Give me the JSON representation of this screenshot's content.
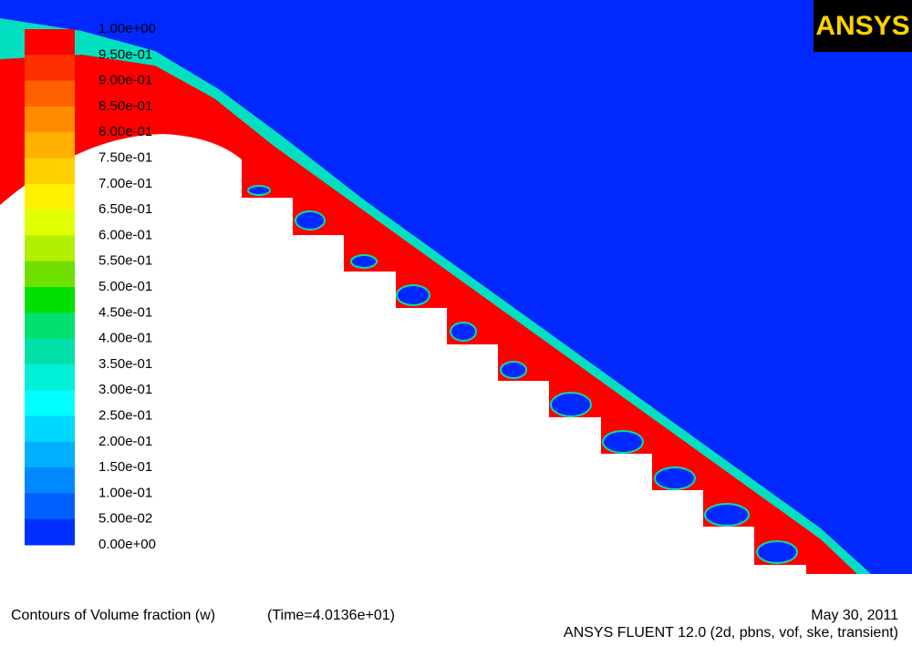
{
  "legend": {
    "labels": [
      "1.00e+00",
      "9.50e-01",
      "9.00e-01",
      "8.50e-01",
      "8.00e-01",
      "7.50e-01",
      "7.00e-01",
      "6.50e-01",
      "6.00e-01",
      "5.50e-01",
      "5.00e-01",
      "4.50e-01",
      "4.00e-01",
      "3.50e-01",
      "3.00e-01",
      "2.50e-01",
      "2.00e-01",
      "1.50e-01",
      "1.00e-01",
      "5.00e-02",
      "0.00e+00"
    ],
    "colors": [
      "#ff0000",
      "#ff3000",
      "#ff6000",
      "#ff8c00",
      "#ffb000",
      "#ffd000",
      "#fff000",
      "#e0ff00",
      "#b0f000",
      "#70e000",
      "#00e000",
      "#00e070",
      "#00e0a8",
      "#00f0d8",
      "#00ffff",
      "#00d8ff",
      "#00b0ff",
      "#0088ff",
      "#0060ff",
      "#0030ff"
    ]
  },
  "logo": "ANSYS",
  "footer": {
    "title": "Contours of Volume fraction (w)",
    "time": "(Time=4.0136e+01)",
    "date": "May 30, 2011",
    "product": "ANSYS FLUENT 12.0 (2d, pbns, vof, ske, transient)"
  }
}
